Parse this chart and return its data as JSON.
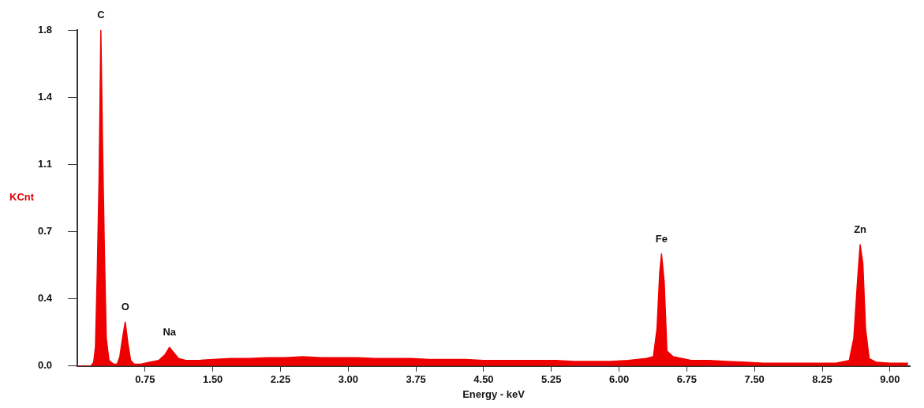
{
  "chart_data": {
    "type": "area",
    "xlabel": "Energy - keV",
    "ylabel": "KCnt",
    "xlim": [
      0,
      9.22
    ],
    "ylim": [
      0,
      1.8
    ],
    "xticks": [
      0.75,
      {
        "value": 1.5,
        "label": "1.50"
      },
      2.25,
      {
        "value": 3,
        "label": "3.00"
      },
      3.75,
      {
        "value": 4.5,
        "label": "4.50"
      },
      5.25,
      {
        "value": 6,
        "label": "6.00"
      },
      6.75,
      {
        "value": 7.5,
        "label": "7.50"
      },
      8.25,
      {
        "value": 9,
        "label": "9.00"
      }
    ],
    "yticks": [
      {
        "value": 0,
        "label": "0.0"
      },
      {
        "value": 0.36,
        "label": "0.4"
      },
      {
        "value": 0.72,
        "label": "0.7"
      },
      {
        "value": 1.08,
        "label": "1.1"
      },
      {
        "value": 1.44,
        "label": "1.4"
      },
      1.8
    ],
    "grid": false,
    "legend": false,
    "marker": "none",
    "line_style": "solid",
    "annotations": [
      {
        "text": "C",
        "x": 0.26,
        "y": 1.8
      },
      {
        "text": "O",
        "x": 0.53,
        "y": 0.235
      },
      {
        "text": "Na",
        "x": 1.02,
        "y": 0.1
      },
      {
        "text": "Fe",
        "x": 6.47,
        "y": 0.6
      },
      {
        "text": "Zn",
        "x": 8.67,
        "y": 0.65
      }
    ],
    "series": [
      {
        "color": "#ee0000",
        "x": [
          0,
          0.12,
          0.15,
          0.18,
          0.2,
          0.22,
          0.24,
          0.26,
          0.28,
          0.3,
          0.32,
          0.35,
          0.4,
          0.44,
          0.47,
          0.5,
          0.53,
          0.56,
          0.59,
          0.63,
          0.7,
          0.8,
          0.9,
          0.97,
          1.02,
          1.07,
          1.12,
          1.2,
          1.35,
          1.5,
          1.7,
          1.9,
          2.1,
          2.3,
          2.5,
          2.7,
          2.9,
          3.1,
          3.3,
          3.5,
          3.7,
          3.9,
          4.1,
          4.3,
          4.5,
          4.7,
          4.9,
          5.1,
          5.3,
          5.5,
          5.7,
          5.9,
          6.1,
          6.3,
          6.38,
          6.42,
          6.45,
          6.47,
          6.5,
          6.53,
          6.6,
          6.8,
          7,
          7.2,
          7.4,
          7.6,
          7.8,
          8,
          8.2,
          8.4,
          8.55,
          8.6,
          8.64,
          8.67,
          8.7,
          8.73,
          8.77,
          8.85,
          9,
          9.2
        ],
        "values": [
          0,
          0,
          0,
          0.02,
          0.1,
          0.5,
          1.0,
          1.8,
          1.15,
          0.6,
          0.15,
          0.03,
          0.01,
          0.01,
          0.05,
          0.15,
          0.235,
          0.12,
          0.03,
          0.01,
          0.01,
          0.02,
          0.03,
          0.06,
          0.1,
          0.07,
          0.04,
          0.03,
          0.03,
          0.035,
          0.04,
          0.04,
          0.045,
          0.045,
          0.05,
          0.045,
          0.045,
          0.045,
          0.04,
          0.04,
          0.04,
          0.035,
          0.035,
          0.035,
          0.03,
          0.03,
          0.03,
          0.03,
          0.03,
          0.025,
          0.025,
          0.025,
          0.03,
          0.04,
          0.05,
          0.2,
          0.5,
          0.6,
          0.45,
          0.08,
          0.05,
          0.03,
          0.03,
          0.025,
          0.02,
          0.015,
          0.015,
          0.015,
          0.015,
          0.015,
          0.03,
          0.15,
          0.45,
          0.65,
          0.55,
          0.2,
          0.04,
          0.02,
          0.015,
          0.015
        ]
      }
    ]
  }
}
